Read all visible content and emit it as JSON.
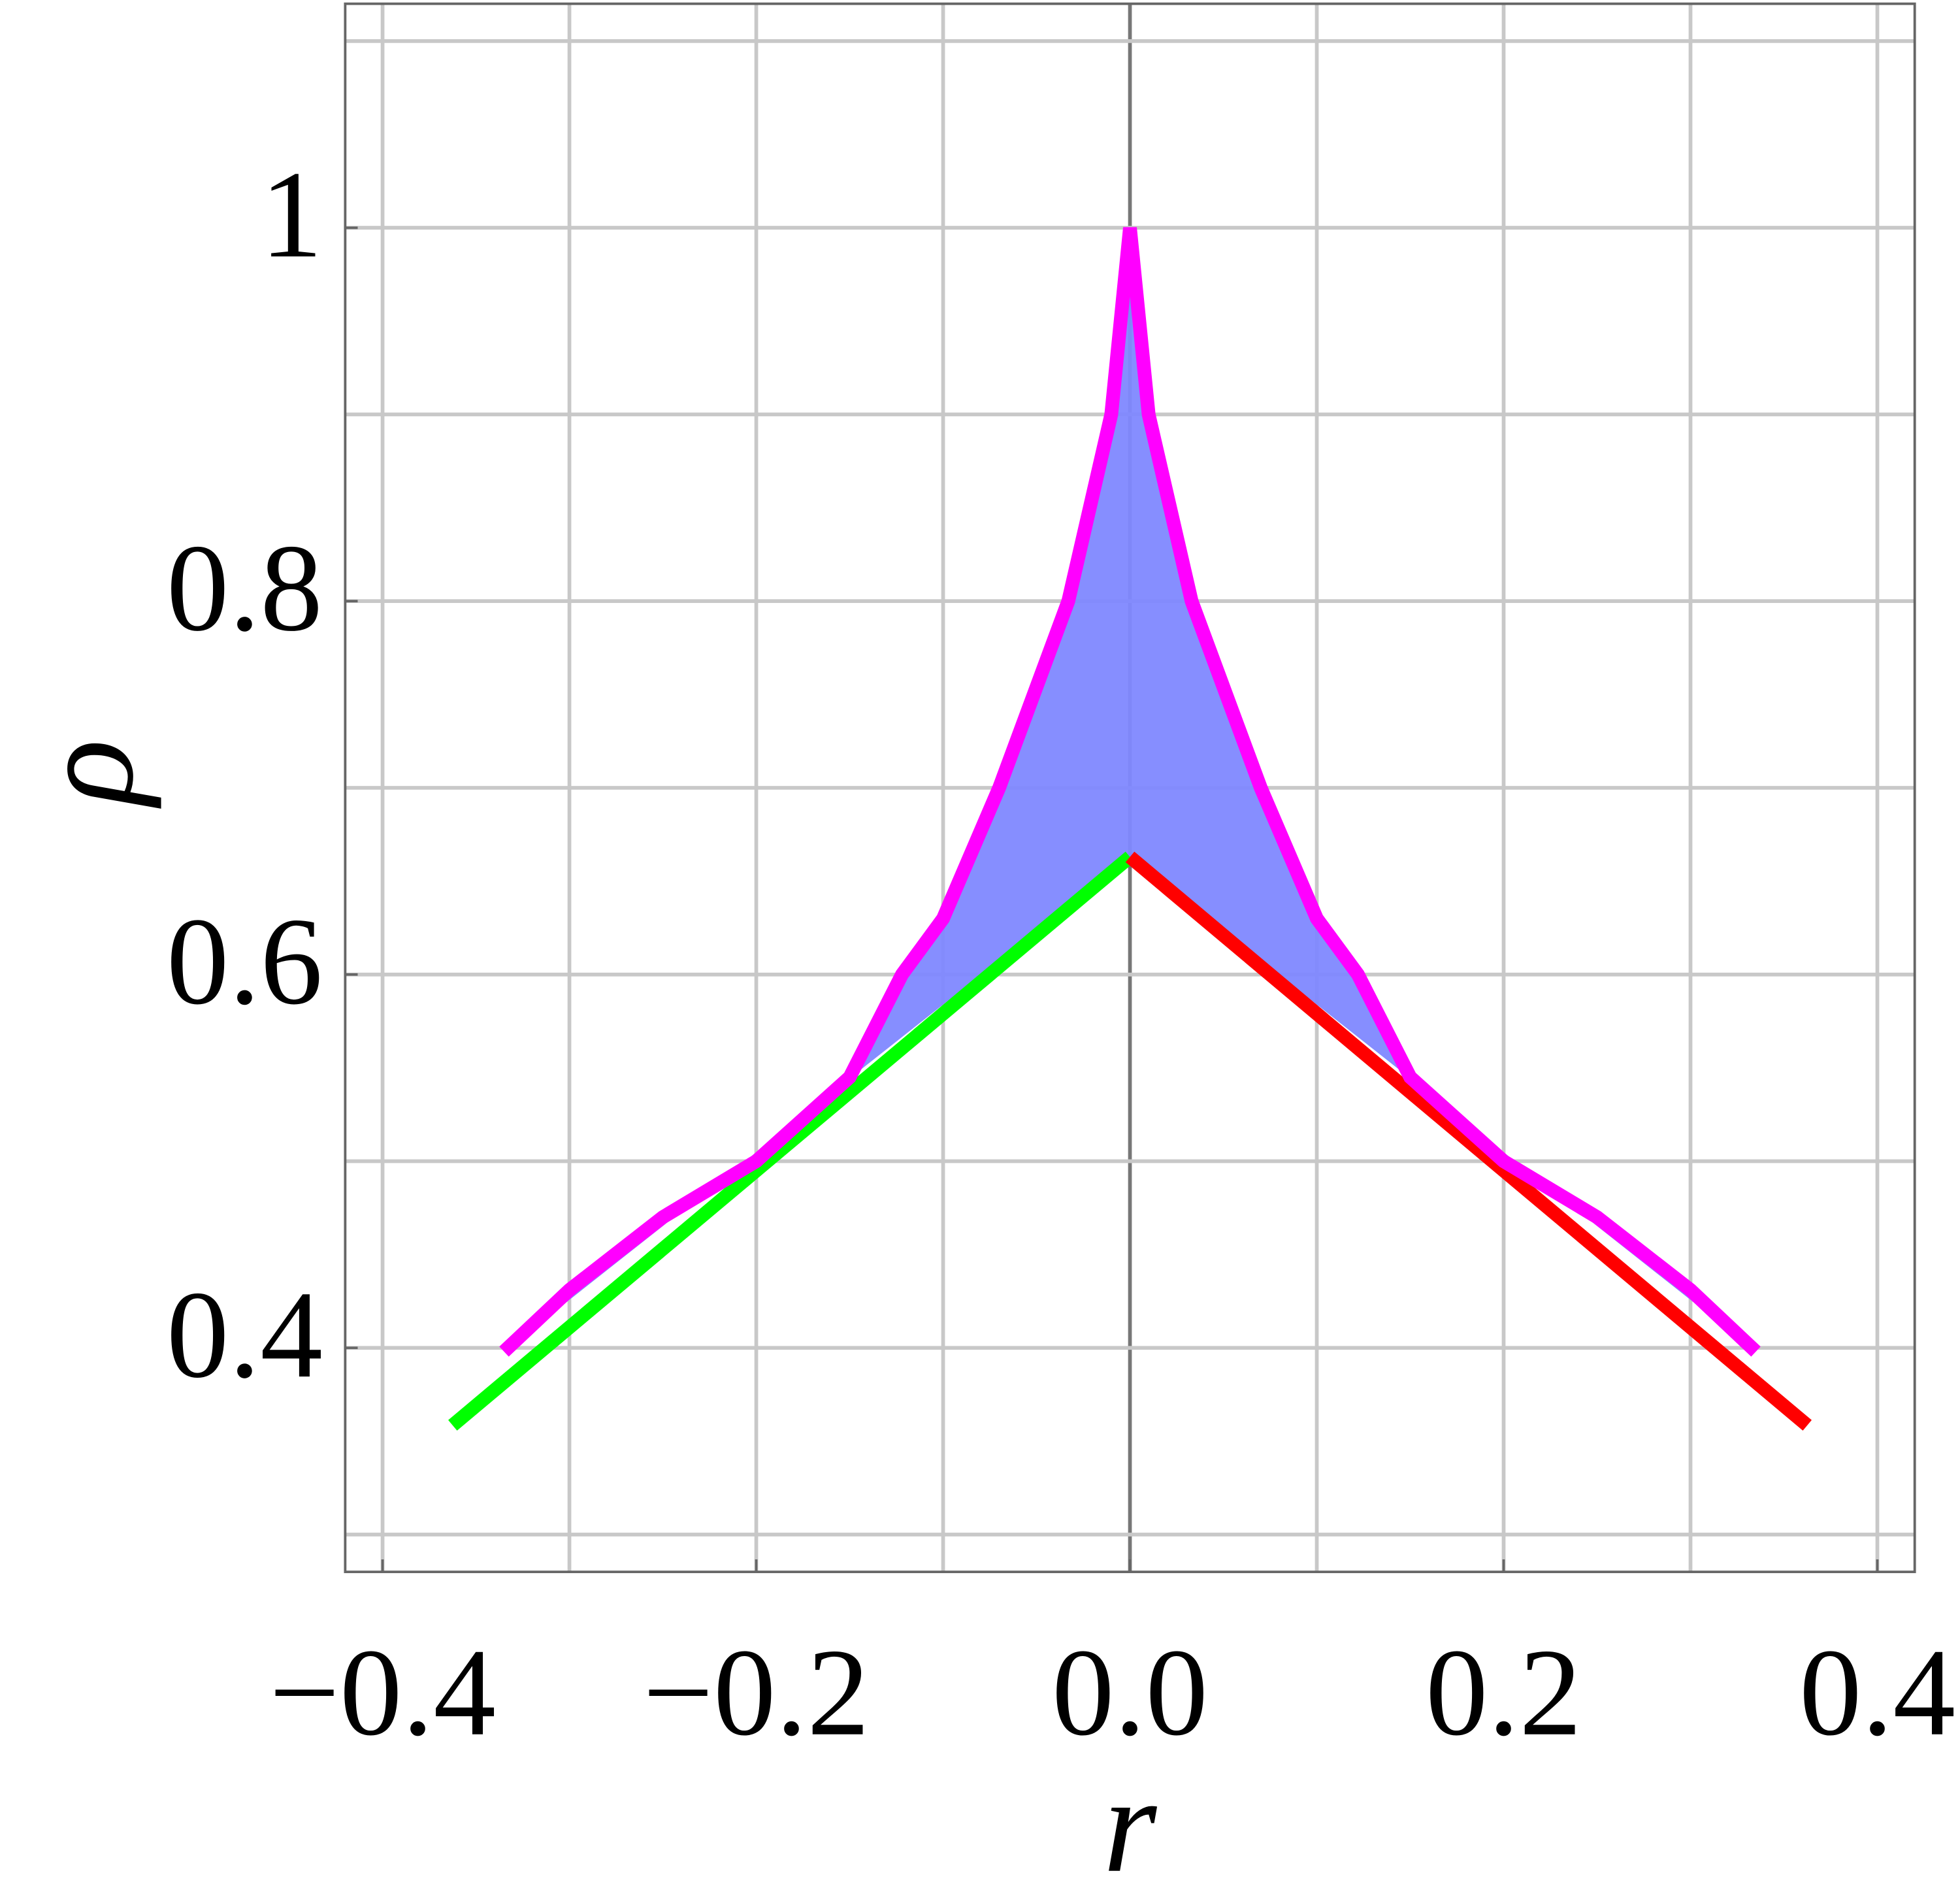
{
  "chart_data": {
    "type": "line",
    "x_label": "r",
    "y_label": "ρ",
    "xlim": [
      -0.42,
      0.42
    ],
    "ylim": [
      0.28,
      1.12
    ],
    "xticks": [
      {
        "value": -0.4,
        "label": "−0.4"
      },
      {
        "value": -0.2,
        "label": "−0.2"
      },
      {
        "value": 0,
        "label": "0.0"
      },
      0.2,
      0.4
    ],
    "yticks": [
      0.4,
      0.6,
      0.8,
      1
    ],
    "xgrid": [
      -0.4,
      -0.3,
      -0.2,
      -0.1,
      0,
      0.1,
      0.2,
      0.3,
      0.4
    ],
    "ygrid": [
      0.3,
      0.4,
      0.5,
      0.6,
      0.7,
      0.8,
      0.9,
      1.0,
      1.1
    ],
    "grid": true,
    "fill_color": "#8088ff",
    "series": [
      {
        "color": "#ff00ff",
        "x": [
          -0.335,
          -0.3,
          -0.25,
          -0.2,
          -0.15,
          -0.122,
          -0.1,
          -0.07,
          -0.033,
          -0.01,
          0,
          0.01,
          0.033,
          0.07,
          0.1,
          0.122,
          0.15,
          0.2,
          0.25,
          0.3,
          0.335
        ],
        "values": [
          0.398,
          0.431,
          0.47,
          0.5,
          0.545,
          0.6,
          0.63,
          0.7,
          0.8,
          0.9,
          1.0,
          0.9,
          0.8,
          0.7,
          0.63,
          0.6,
          0.545,
          0.5,
          0.47,
          0.431,
          0.398
        ]
      },
      {
        "color": "#00ff00",
        "x": [
          -0.3625,
          0
        ],
        "values": [
          0.3585,
          0.663
        ]
      },
      {
        "color": "#ff0000",
        "x": [
          0,
          0.3625
        ],
        "values": [
          0.663,
          0.3585
        ]
      }
    ]
  }
}
